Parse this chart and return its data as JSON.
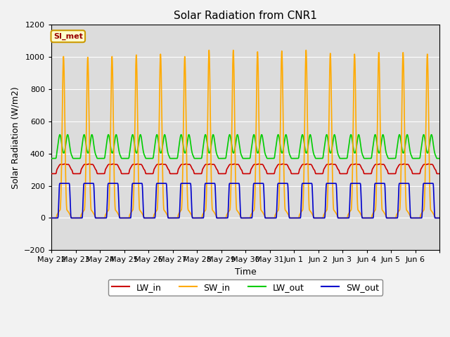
{
  "title": "Solar Radiation from CNR1",
  "xlabel": "Time",
  "ylabel": "Solar Radiation (W/m2)",
  "ylim": [
    -200,
    1200
  ],
  "yticks": [
    -200,
    0,
    200,
    400,
    600,
    800,
    1000,
    1200
  ],
  "num_days": 16,
  "tick_labels": [
    "May 22",
    "May 23",
    "May 24",
    "May 25",
    "May 26",
    "May 27",
    "May 28",
    "May 29",
    "May 30",
    "May 31",
    "Jun 1",
    "Jun 2",
    "Jun 3",
    "Jun 4",
    "Jun 5",
    "Jun 6"
  ],
  "series": {
    "LW_in": {
      "color": "#cc0000",
      "linewidth": 1.2
    },
    "SW_in": {
      "color": "#ffaa00",
      "linewidth": 1.2
    },
    "LW_out": {
      "color": "#00cc00",
      "linewidth": 1.2
    },
    "SW_out": {
      "color": "#0000cc",
      "linewidth": 1.2
    }
  },
  "annotation_text": "SI_met",
  "annotation_bg": "#ffffcc",
  "annotation_border": "#cc9900",
  "annotation_text_color": "#990000",
  "fig_bg_color": "#f2f2f2",
  "plot_bg_color": "#dcdcdc",
  "grid_color": "#ffffff",
  "sw_in_peaks": [
    1010,
    1005,
    1010,
    1020,
    1025,
    1010,
    1050,
    1050,
    1040,
    1045,
    1050,
    1030,
    1025,
    1035,
    1035,
    1025
  ],
  "lw_out_base": 380,
  "lw_out_peak": 140,
  "lw_in_base": 295,
  "lw_in_bump": 50,
  "sw_out_peak": 215
}
